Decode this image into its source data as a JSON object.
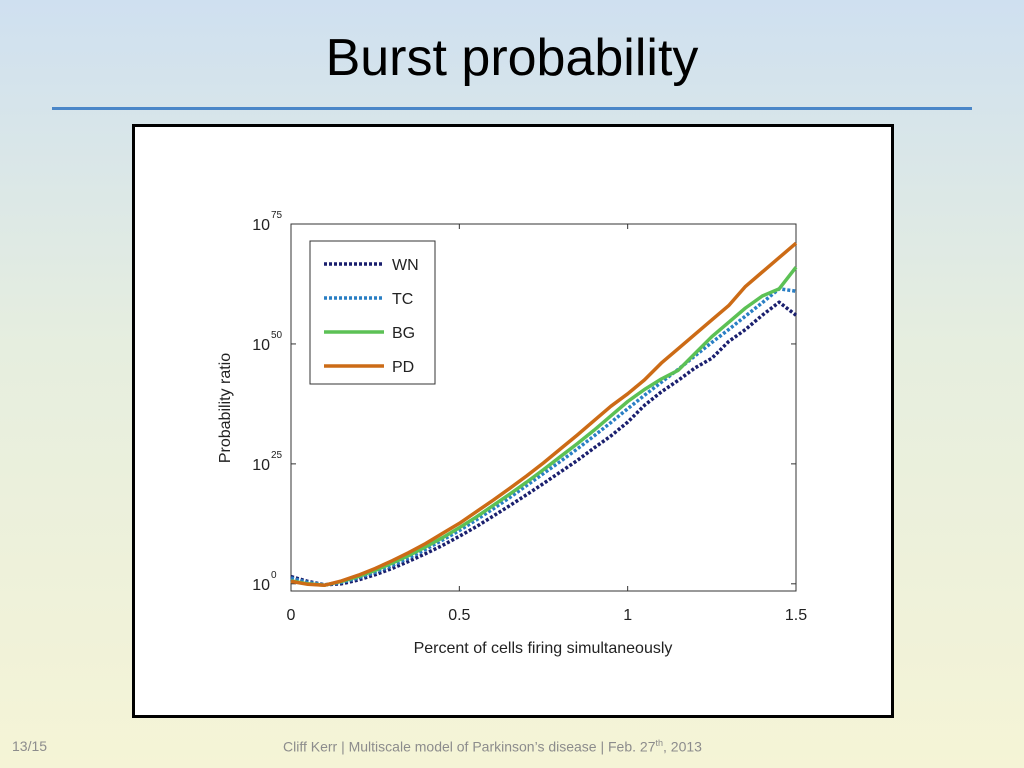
{
  "slide": {
    "title": "Burst probability",
    "page_number": "13/15",
    "footer": {
      "before": "Cliff Kerr | Multiscale model of Parkinson’s disease | Feb. 27",
      "sup": "th",
      "after": ", 2013"
    }
  },
  "chart_data": {
    "type": "line",
    "title": "",
    "xlabel": "Percent of cells firing simultaneously",
    "ylabel": "Probability ratio",
    "y_scale": "log10",
    "xlim": [
      0,
      1.5
    ],
    "ylim_exponent": [
      -1.5,
      75
    ],
    "x_ticks": [
      0,
      0.5,
      1,
      1.5
    ],
    "x_tick_labels": [
      "0",
      "0.5",
      "1",
      "1.5"
    ],
    "y_ticks_exponent": [
      0,
      25,
      50,
      75
    ],
    "y_tick_labels": [
      {
        "base": "10",
        "exp": "0"
      },
      {
        "base": "10",
        "exp": "25"
      },
      {
        "base": "10",
        "exp": "50"
      },
      {
        "base": "10",
        "exp": "75"
      }
    ],
    "legend_position": "top-left",
    "grid": false,
    "x": [
      0,
      0.05,
      0.1,
      0.15,
      0.2,
      0.25,
      0.3,
      0.35,
      0.4,
      0.45,
      0.5,
      0.55,
      0.6,
      0.65,
      0.7,
      0.75,
      0.8,
      0.85,
      0.9,
      0.95,
      1.0,
      1.05,
      1.1,
      1.15,
      1.2,
      1.25,
      1.3,
      1.35,
      1.4,
      1.45,
      1.5
    ],
    "series": [
      {
        "name": "WN",
        "color": "#1a1f6e",
        "style": "dotted",
        "values_log10": [
          1.5,
          0.5,
          -0.2,
          0.0,
          0.8,
          1.9,
          3.2,
          4.7,
          6.3,
          8.0,
          9.9,
          11.9,
          14.1,
          16.3,
          18.6,
          20.9,
          23.3,
          25.7,
          28.3,
          30.8,
          33.7,
          37.2,
          40.0,
          42.4,
          45.0,
          47.0,
          50.5,
          53.0,
          56.0,
          58.7,
          56.0
        ]
      },
      {
        "name": "TC",
        "color": "#2a7fc4",
        "style": "dotted",
        "values_log10": [
          1.2,
          0.3,
          -0.2,
          0.3,
          1.2,
          2.4,
          3.8,
          5.4,
          7.2,
          9.1,
          11.1,
          13.3,
          15.6,
          18.0,
          20.5,
          23.0,
          25.5,
          28.1,
          30.8,
          33.6,
          36.5,
          39.3,
          42.0,
          44.7,
          47.5,
          50.3,
          53.0,
          55.8,
          58.6,
          61.5,
          61.0
        ]
      },
      {
        "name": "BG",
        "color": "#5cc155",
        "style": "solid",
        "values_log10": [
          0.6,
          0.0,
          -0.3,
          0.5,
          1.5,
          2.8,
          4.3,
          5.9,
          7.7,
          9.6,
          11.7,
          13.9,
          16.3,
          18.7,
          21.2,
          23.8,
          26.5,
          29.2,
          32.0,
          35.0,
          38.0,
          40.5,
          42.7,
          44.5,
          48.0,
          51.5,
          54.5,
          57.5,
          60.0,
          61.5,
          66.0
        ]
      },
      {
        "name": "PD",
        "color": "#cc6b16",
        "style": "solid",
        "values_log10": [
          0.5,
          -0.1,
          -0.3,
          0.6,
          1.8,
          3.2,
          4.8,
          6.5,
          8.4,
          10.5,
          12.6,
          15.0,
          17.4,
          19.9,
          22.5,
          25.2,
          28.1,
          31.0,
          34.0,
          37.0,
          39.6,
          42.5,
          46.0,
          49.0,
          52.0,
          55.0,
          58.0,
          62.0,
          65.0,
          68.0,
          71.0
        ]
      }
    ]
  }
}
